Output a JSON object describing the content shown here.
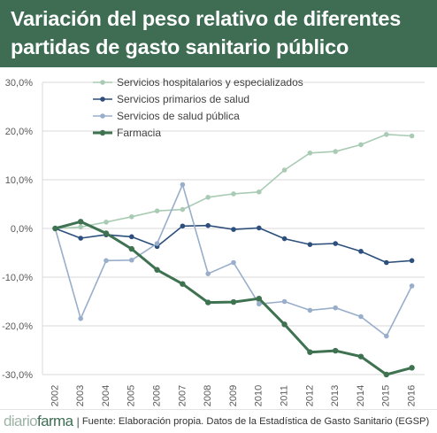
{
  "header": {
    "title_line1": "Variación del peso relativo de diferentes",
    "title_line2": "partidas de gasto sanitario público"
  },
  "footer": {
    "brand_part1": "diario",
    "brand_part2": "farma",
    "separator": "|",
    "source": "Fuente: Elaboración propia. Datos de la Estadística de Gasto Sanitario  (EGSP)"
  },
  "colors": {
    "header_bg": "#3e6d54",
    "series": [
      "#a9cbb4",
      "#2d4f7c",
      "#98aecb",
      "#3e7250"
    ]
  },
  "chart_data": {
    "type": "line",
    "x": [
      "2002",
      "2003",
      "2004",
      "2005",
      "2006",
      "2007",
      "2008",
      "2009",
      "2010",
      "2011",
      "2012",
      "2013",
      "2014",
      "2015",
      "2016"
    ],
    "y_ticks": [
      "30,0%",
      "20,0%",
      "10,0%",
      "0,0%",
      "-10,0%",
      "-20,0%",
      "-30,0%"
    ],
    "y_tick_values": [
      30,
      20,
      10,
      0,
      -10,
      -20,
      -30
    ],
    "ylim": [
      -30,
      30
    ],
    "y_unit": "%",
    "grid": true,
    "legend_position": "top-center",
    "series": [
      {
        "name": "Servicios hospitalarios y especializados",
        "values": [
          0,
          0.3,
          1.3,
          2.4,
          3.6,
          3.9,
          6.4,
          7.1,
          7.5,
          12.0,
          15.5,
          15.8,
          17.2,
          19.3,
          19.0
        ]
      },
      {
        "name": "Servicios primarios de salud",
        "values": [
          0,
          -2.0,
          -1.3,
          -1.7,
          -3.7,
          0.5,
          0.6,
          -0.2,
          0.1,
          -2.1,
          -3.3,
          -3.1,
          -4.7,
          -7.0,
          -6.6
        ]
      },
      {
        "name": "Servicios de salud pública",
        "values": [
          0,
          -18.5,
          -6.6,
          -6.5,
          -3.1,
          9.0,
          -9.3,
          -7.0,
          -15.5,
          -15.0,
          -16.8,
          -16.3,
          -18.1,
          -22.1,
          -11.8
        ]
      },
      {
        "name": "Farmacia",
        "values": [
          0,
          1.4,
          -1.0,
          -4.2,
          -8.5,
          -11.4,
          -15.2,
          -15.1,
          -14.4,
          -19.7,
          -25.4,
          -25.1,
          -26.3,
          -30.0,
          -28.6
        ]
      }
    ]
  }
}
